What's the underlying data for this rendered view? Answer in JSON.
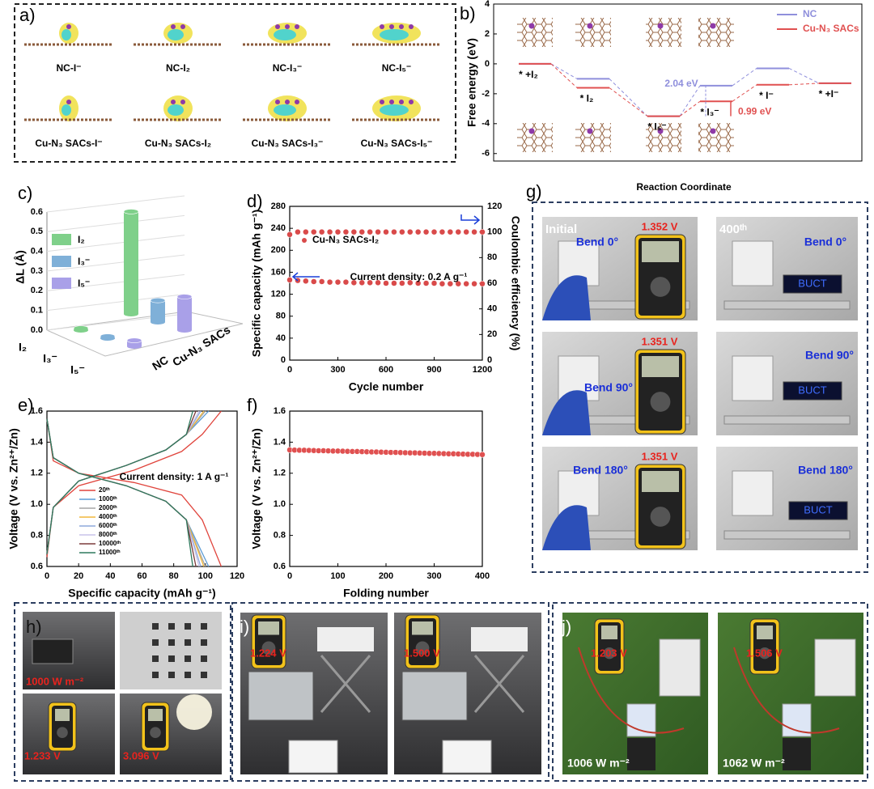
{
  "chart_data": [
    {
      "type": "level",
      "panel": "b)",
      "ylabel": "Free energy (eV)",
      "xlabel": "Reaction Coordinate",
      "categories": [
        "* +I₂",
        "* I₂",
        "* I₅⁻",
        "* I₃⁻",
        "* I⁻",
        "* +I⁻"
      ],
      "series": [
        {
          "name": "NC",
          "color": "#8f8fdc",
          "values": [
            0,
            -1.0,
            -3.5,
            -1.46,
            -0.3,
            -1.3
          ]
        },
        {
          "name": "Cu-N₃ SACs",
          "color": "#e05050",
          "values": [
            0,
            -1.6,
            -3.5,
            -2.51,
            -1.4,
            -1.3
          ]
        }
      ],
      "annotations": [
        "2.04 eV",
        "0.99 eV"
      ],
      "ylim": [
        -6.5,
        4
      ],
      "yticks": [
        -6,
        -4,
        -2,
        0,
        2,
        4
      ]
    },
    {
      "type": "bar3d",
      "panel": "c)",
      "ylabel": "ΔL (Å)",
      "categories": [
        "I₂",
        "I₃⁻",
        "I₅⁻"
      ],
      "colors": [
        "#7fd08a",
        "#7fb0d8",
        "#a9a0e8"
      ],
      "series": [
        {
          "name": "NC",
          "values": [
            0.01,
            0.01,
            0.03
          ]
        },
        {
          "name": "Cu-N₃ SACs",
          "values": [
            0.52,
            0.11,
            0.17
          ]
        }
      ],
      "ylim": [
        0,
        0.6
      ],
      "yticks": [
        {
          "value": 0,
          "label": "0.0"
        },
        0.1,
        0.2,
        0.3,
        0.4,
        0.5,
        0.6
      ]
    },
    {
      "type": "scatter",
      "panel": "d)",
      "xlabel": "Cycle number",
      "ylabel": "Specific capacity (mAh g⁻¹)",
      "y2label": "Coulombic efficiency (%)",
      "annotation": "Current density: 0.2 A g⁻¹",
      "legend": "upper left",
      "x": [
        0,
        50,
        100,
        150,
        200,
        250,
        300,
        350,
        400,
        450,
        500,
        550,
        600,
        650,
        700,
        750,
        800,
        850,
        900,
        950,
        1000,
        1050,
        1100,
        1150,
        1200
      ],
      "series": [
        {
          "name": "Cu-N₃ SACs-I₂",
          "color": "#d94a4a",
          "values": [
            146,
            145,
            144,
            143,
            143,
            142,
            142,
            142,
            141,
            141,
            141,
            141,
            140,
            140,
            140,
            141,
            140,
            140,
            140,
            139,
            139,
            139,
            139,
            139,
            139
          ]
        },
        {
          "color": "#d94a4a",
          "axis": "y2",
          "values": [
            98,
            100,
            100,
            100,
            100,
            100,
            100,
            100,
            100,
            100,
            100,
            100,
            100,
            100,
            100,
            100,
            100,
            100,
            100,
            100,
            100,
            100,
            100,
            100,
            100
          ]
        }
      ],
      "xlim": [
        0,
        1200
      ],
      "xticks": [
        0,
        300,
        600,
        900,
        1200
      ],
      "ylim": [
        0,
        280
      ],
      "yticks": [
        0,
        40,
        80,
        120,
        160,
        200,
        240,
        280
      ],
      "y2lim": [
        0,
        120
      ],
      "y2ticks": [
        0,
        20,
        40,
        60,
        80,
        100,
        120
      ]
    },
    {
      "type": "line",
      "panel": "e)",
      "xlabel": "Specific capacity (mAh g⁻¹)",
      "ylabel": "Voltage (V vs. Zn²⁺/Zn)",
      "annotation": "Current density: 1 A g⁻¹",
      "legend": "lower left",
      "series": [
        {
          "name": "20ᵗʰ",
          "color": "#e0443c",
          "x": [
            0,
            4,
            20,
            55,
            85,
            98,
            110,
            null,
            0,
            4,
            20,
            55,
            85,
            98,
            110
          ],
          "values": [
            1.55,
            1.28,
            1.2,
            1.14,
            1.06,
            0.9,
            0.6,
            null,
            0.66,
            0.98,
            1.12,
            1.22,
            1.34,
            1.45,
            1.6
          ]
        },
        {
          "name": "1000ᵗʰ",
          "color": "#5b9bd5",
          "x": [
            0,
            4,
            20,
            50,
            75,
            88,
            102,
            null,
            0,
            4,
            20,
            50,
            75,
            88,
            102
          ],
          "values": [
            1.55,
            1.3,
            1.2,
            1.12,
            1.02,
            0.9,
            0.6,
            null,
            0.68,
            0.98,
            1.15,
            1.25,
            1.35,
            1.45,
            1.6
          ]
        },
        {
          "name": "2000ᵗʰ",
          "color": "#a5a5a5",
          "x": [
            0,
            4,
            20,
            50,
            75,
            88,
            100,
            null,
            0,
            4,
            20,
            50,
            75,
            88,
            100
          ],
          "values": [
            1.55,
            1.3,
            1.2,
            1.12,
            1.02,
            0.9,
            0.6,
            null,
            0.68,
            0.98,
            1.15,
            1.25,
            1.35,
            1.45,
            1.6
          ]
        },
        {
          "name": "4000ᵗʰ",
          "color": "#f0b73c",
          "x": [
            0,
            4,
            20,
            50,
            75,
            88,
            99,
            null,
            0,
            4,
            20,
            50,
            75,
            88,
            99
          ],
          "values": [
            1.55,
            1.3,
            1.2,
            1.12,
            1.02,
            0.9,
            0.6,
            null,
            0.68,
            0.98,
            1.15,
            1.25,
            1.35,
            1.45,
            1.6
          ]
        },
        {
          "name": "6000ᵗʰ",
          "color": "#8ea9db",
          "x": [
            0,
            4,
            20,
            50,
            75,
            88,
            97,
            null,
            0,
            4,
            20,
            50,
            75,
            88,
            97
          ],
          "values": [
            1.55,
            1.3,
            1.2,
            1.12,
            1.02,
            0.9,
            0.6,
            null,
            0.68,
            0.98,
            1.15,
            1.25,
            1.35,
            1.45,
            1.6
          ]
        },
        {
          "name": "8000ᵗʰ",
          "color": "#c9c3ea",
          "x": [
            0,
            4,
            20,
            50,
            75,
            88,
            96,
            null,
            0,
            4,
            20,
            50,
            75,
            88,
            96
          ],
          "values": [
            1.55,
            1.3,
            1.2,
            1.12,
            1.02,
            0.9,
            0.6,
            null,
            0.68,
            0.98,
            1.15,
            1.25,
            1.35,
            1.45,
            1.6
          ]
        },
        {
          "name": "10000ᵗʰ",
          "color": "#7b3b3b",
          "x": [
            0,
            4,
            20,
            50,
            75,
            88,
            94,
            null,
            0,
            4,
            20,
            50,
            75,
            88,
            94
          ],
          "values": [
            1.55,
            1.3,
            1.2,
            1.12,
            1.02,
            0.9,
            0.6,
            null,
            0.68,
            0.98,
            1.15,
            1.25,
            1.35,
            1.45,
            1.6
          ]
        },
        {
          "name": "11000ᵗʰ",
          "color": "#2f7a5e",
          "x": [
            0,
            4,
            20,
            50,
            75,
            88,
            92,
            null,
            0,
            4,
            20,
            50,
            75,
            88,
            92
          ],
          "values": [
            1.55,
            1.3,
            1.2,
            1.12,
            1.02,
            0.9,
            0.6,
            null,
            0.68,
            0.98,
            1.15,
            1.25,
            1.35,
            1.45,
            1.6
          ]
        }
      ],
      "xlim": [
        0,
        120
      ],
      "xticks": [
        0,
        20,
        40,
        60,
        80,
        100,
        120
      ],
      "ylim": [
        0.6,
        1.6
      ],
      "yticks": [
        0.6,
        0.8,
        {
          "value": 1,
          "label": "1.0"
        },
        1.2,
        1.4,
        1.6
      ]
    },
    {
      "type": "scatter",
      "panel": "f)",
      "xlabel": "Folding number",
      "ylabel": "Voltage (V vs. Zn²⁺/Zn)",
      "x": [
        0,
        10,
        20,
        30,
        40,
        50,
        60,
        70,
        80,
        90,
        100,
        110,
        120,
        130,
        140,
        150,
        160,
        170,
        180,
        190,
        200,
        210,
        220,
        230,
        240,
        250,
        260,
        270,
        280,
        290,
        300,
        310,
        320,
        330,
        340,
        350,
        360,
        370,
        380,
        390,
        400
      ],
      "series": [
        {
          "color": "#e05050",
          "values": [
            1.35,
            1.349,
            1.348,
            1.348,
            1.347,
            1.346,
            1.345,
            1.345,
            1.344,
            1.343,
            1.343,
            1.342,
            1.341,
            1.34,
            1.34,
            1.339,
            1.338,
            1.337,
            1.337,
            1.336,
            1.335,
            1.334,
            1.334,
            1.333,
            1.332,
            1.331,
            1.331,
            1.33,
            1.329,
            1.328,
            1.328,
            1.327,
            1.326,
            1.325,
            1.325,
            1.324,
            1.323,
            1.322,
            1.322,
            1.321,
            1.32
          ]
        }
      ],
      "xlim": [
        0,
        400
      ],
      "xticks": [
        0,
        100,
        200,
        300,
        400
      ],
      "ylim": [
        0.6,
        1.6
      ],
      "yticks": [
        0.6,
        0.8,
        {
          "value": 1,
          "label": "1.0"
        },
        1.2,
        1.4,
        1.6
      ]
    }
  ],
  "panel_a": {
    "panel": "a)",
    "labels": [
      "NC-I⁻",
      "NC-I₂",
      "NC-I₃⁻",
      "NC-I₅⁻",
      "Cu-N₃ SACs-I⁻",
      "Cu-N₃ SACs-I₂",
      "Cu-N₃ SACs-I₃⁻",
      "Cu-N₃ SACs-I₅⁻"
    ]
  },
  "panel_g": {
    "panel": "g)",
    "columns": [
      "Initial",
      "400ᵗʰ"
    ],
    "photos": [
      {
        "voltage": "1.352 V",
        "bend": "Bend 0°"
      },
      {
        "voltage": "1.351 V",
        "bend": "Bend 90°"
      },
      {
        "voltage": "1.351 V",
        "bend": "Bend 180°"
      },
      {
        "bend": "Bend 0°",
        "display": "BUCT"
      },
      {
        "bend": "Bend 90°",
        "display": "BUCT"
      },
      {
        "bend": "Bend 180°",
        "display": "BUCT"
      }
    ]
  },
  "panel_h": {
    "panel": "h)",
    "texts": [
      "1000 W m⁻²",
      "1.233 V",
      "3.096 V"
    ]
  },
  "panel_i": {
    "panel": "i)",
    "texts": [
      "1.224 V",
      "1.500 V"
    ]
  },
  "panel_j": {
    "panel": "j)",
    "texts": [
      "1.203 V",
      "1.506 V",
      "1006 W m⁻²",
      "1062 W m⁻²"
    ]
  }
}
